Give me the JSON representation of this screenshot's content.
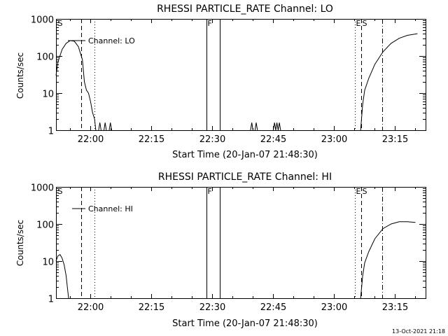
{
  "footer": {
    "timestamp": "13-Oct-2021 21:18"
  },
  "chart_data": [
    {
      "type": "line",
      "title": "RHESSI PARTICLE_RATE Channel: LO",
      "xlabel": "Start Time (20-Jan-07 21:48:30)",
      "ylabel": "Counts/sec",
      "yscale": "log",
      "ylim": [
        1,
        1000
      ],
      "xlim_minutes": [
        21.5,
        112.5
      ],
      "x_ticks": [
        {
          "label": "22:00",
          "min": 30
        },
        {
          "label": "22:15",
          "min": 45
        },
        {
          "label": "22:30",
          "min": 60
        },
        {
          "label": "22:45",
          "min": 75
        },
        {
          "label": "23:00",
          "min": 90
        },
        {
          "label": "23:15",
          "min": 105
        }
      ],
      "y_ticks": [
        {
          "label": "1",
          "value": 1
        },
        {
          "label": "10",
          "value": 10
        },
        {
          "label": "100",
          "value": 100
        },
        {
          "label": "1000",
          "value": 1000
        }
      ],
      "legend": {
        "label": "Channel: LO",
        "position": "top-left"
      },
      "flags": [
        {
          "label": "S",
          "min": 21.6,
          "style": "none"
        },
        {
          "label": "",
          "min": 27.7,
          "style": "dashed"
        },
        {
          "label": "",
          "min": 30.9,
          "style": "dotted"
        },
        {
          "label": "F",
          "min": 58.6,
          "style": "solid"
        },
        {
          "label": "",
          "min": 61.9,
          "style": "solid"
        },
        {
          "label": "E",
          "min": 95.1,
          "style": "dotted"
        },
        {
          "label": "S",
          "min": 96.7,
          "style": "dashed"
        },
        {
          "label": "",
          "min": 101.9,
          "style": "dashdot"
        }
      ],
      "series": [
        {
          "name": "Channel: LO",
          "segments": [
            [
              [
                21.5,
                30
              ],
              [
                22.0,
                70
              ],
              [
                23.0,
                150
              ],
              [
                24.0,
                220
              ],
              [
                25.0,
                260
              ],
              [
                26.0,
                250
              ],
              [
                27.0,
                180
              ],
              [
                28.0,
                80
              ],
              [
                28.5,
                20
              ],
              [
                29.0,
                12
              ],
              [
                29.5,
                10
              ],
              [
                30.0,
                6
              ],
              [
                30.5,
                3
              ],
              [
                31.0,
                2
              ],
              [
                31.3,
                1
              ]
            ],
            [
              [
                32.0,
                1
              ],
              [
                32.3,
                1.6
              ],
              [
                32.6,
                1
              ]
            ],
            [
              [
                33.3,
                1
              ],
              [
                33.6,
                1.6
              ],
              [
                33.9,
                1
              ]
            ],
            [
              [
                34.6,
                1
              ],
              [
                34.9,
                1.6
              ],
              [
                35.2,
                1
              ]
            ],
            [
              [
                69.4,
                1
              ],
              [
                69.7,
                1.6
              ],
              [
                70.0,
                1
              ]
            ],
            [
              [
                70.5,
                1
              ],
              [
                70.8,
                1.6
              ],
              [
                71.1,
                1
              ]
            ],
            [
              [
                75.0,
                1
              ],
              [
                75.3,
                1.6
              ],
              [
                75.6,
                1
              ],
              [
                75.9,
                1.6
              ],
              [
                76.2,
                1
              ],
              [
                76.5,
                1.6
              ],
              [
                76.8,
                1
              ]
            ],
            [
              [
                96.5,
                1
              ],
              [
                97.0,
                5
              ],
              [
                97.5,
                12
              ],
              [
                98.5,
                25
              ],
              [
                100.0,
                60
              ],
              [
                102.0,
                130
              ],
              [
                104.0,
                220
              ],
              [
                106.0,
                300
              ],
              [
                108.0,
                360
              ],
              [
                110.5,
                400
              ]
            ]
          ]
        }
      ]
    },
    {
      "type": "line",
      "title": "RHESSI PARTICLE_RATE Channel: HI",
      "xlabel": "Start Time (20-Jan-07 21:48:30)",
      "ylabel": "Counts/sec",
      "yscale": "log",
      "ylim": [
        1,
        1000
      ],
      "xlim_minutes": [
        21.5,
        112.5
      ],
      "x_ticks": [
        {
          "label": "22:00",
          "min": 30
        },
        {
          "label": "22:15",
          "min": 45
        },
        {
          "label": "22:30",
          "min": 60
        },
        {
          "label": "22:45",
          "min": 75
        },
        {
          "label": "23:00",
          "min": 90
        },
        {
          "label": "23:15",
          "min": 105
        }
      ],
      "y_ticks": [
        {
          "label": "1",
          "value": 1
        },
        {
          "label": "10",
          "value": 10
        },
        {
          "label": "100",
          "value": 100
        },
        {
          "label": "1000",
          "value": 1000
        }
      ],
      "legend": {
        "label": "Channel: HI",
        "position": "top-left"
      },
      "flags": [
        {
          "label": "S",
          "min": 21.6,
          "style": "none"
        },
        {
          "label": "",
          "min": 27.7,
          "style": "dashed"
        },
        {
          "label": "",
          "min": 30.9,
          "style": "dotted"
        },
        {
          "label": "F",
          "min": 58.6,
          "style": "solid"
        },
        {
          "label": "",
          "min": 61.9,
          "style": "solid"
        },
        {
          "label": "E",
          "min": 95.1,
          "style": "dotted"
        },
        {
          "label": "S",
          "min": 96.7,
          "style": "dashed"
        },
        {
          "label": "",
          "min": 101.9,
          "style": "dashdot"
        }
      ],
      "series": [
        {
          "name": "Channel: HI",
          "segments": [
            [
              [
                21.5,
                10
              ],
              [
                22.0,
                14
              ],
              [
                22.5,
                15
              ],
              [
                23.0,
                12
              ],
              [
                23.5,
                8
              ],
              [
                24.0,
                4
              ],
              [
                24.3,
                2
              ],
              [
                24.6,
                1
              ]
            ],
            [
              [
                96.5,
                1
              ],
              [
                97.0,
                4
              ],
              [
                97.5,
                9
              ],
              [
                98.5,
                18
              ],
              [
                100.0,
                40
              ],
              [
                102.0,
                75
              ],
              [
                104.0,
                100
              ],
              [
                106.0,
                115
              ],
              [
                108.0,
                115
              ],
              [
                110.0,
                110
              ]
            ]
          ]
        }
      ]
    }
  ]
}
